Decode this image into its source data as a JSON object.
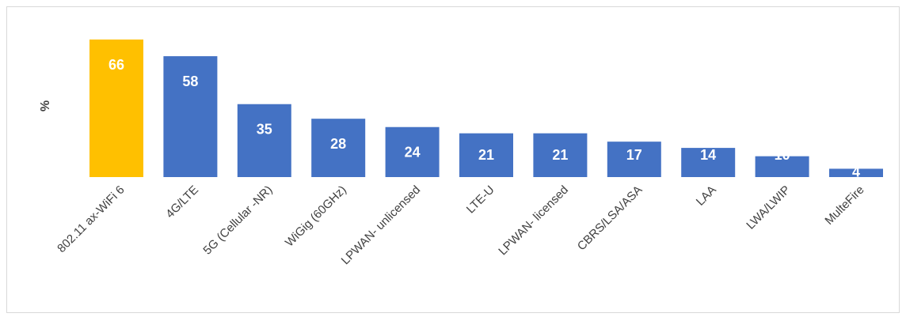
{
  "chart_data": {
    "type": "bar",
    "y_label": "%",
    "categories": [
      "802.11 ax-WiFi 6",
      "4G/LTE",
      "5G (Cellular -NR)",
      "WiGig (60GHz)",
      "LPWAN- unlicensed",
      "LTE-U",
      "LPWAN- licensed",
      "CBRS/LSA/ASA",
      "LAA",
      "LWA/LWIP",
      "MulteFire"
    ],
    "values": [
      66,
      58,
      35,
      28,
      24,
      21,
      21,
      17,
      14,
      10,
      4
    ],
    "colors": [
      "#ffc000",
      "#4472c4",
      "#4472c4",
      "#4472c4",
      "#4472c4",
      "#4472c4",
      "#4472c4",
      "#4472c4",
      "#4472c4",
      "#4472c4",
      "#4472c4"
    ]
  }
}
